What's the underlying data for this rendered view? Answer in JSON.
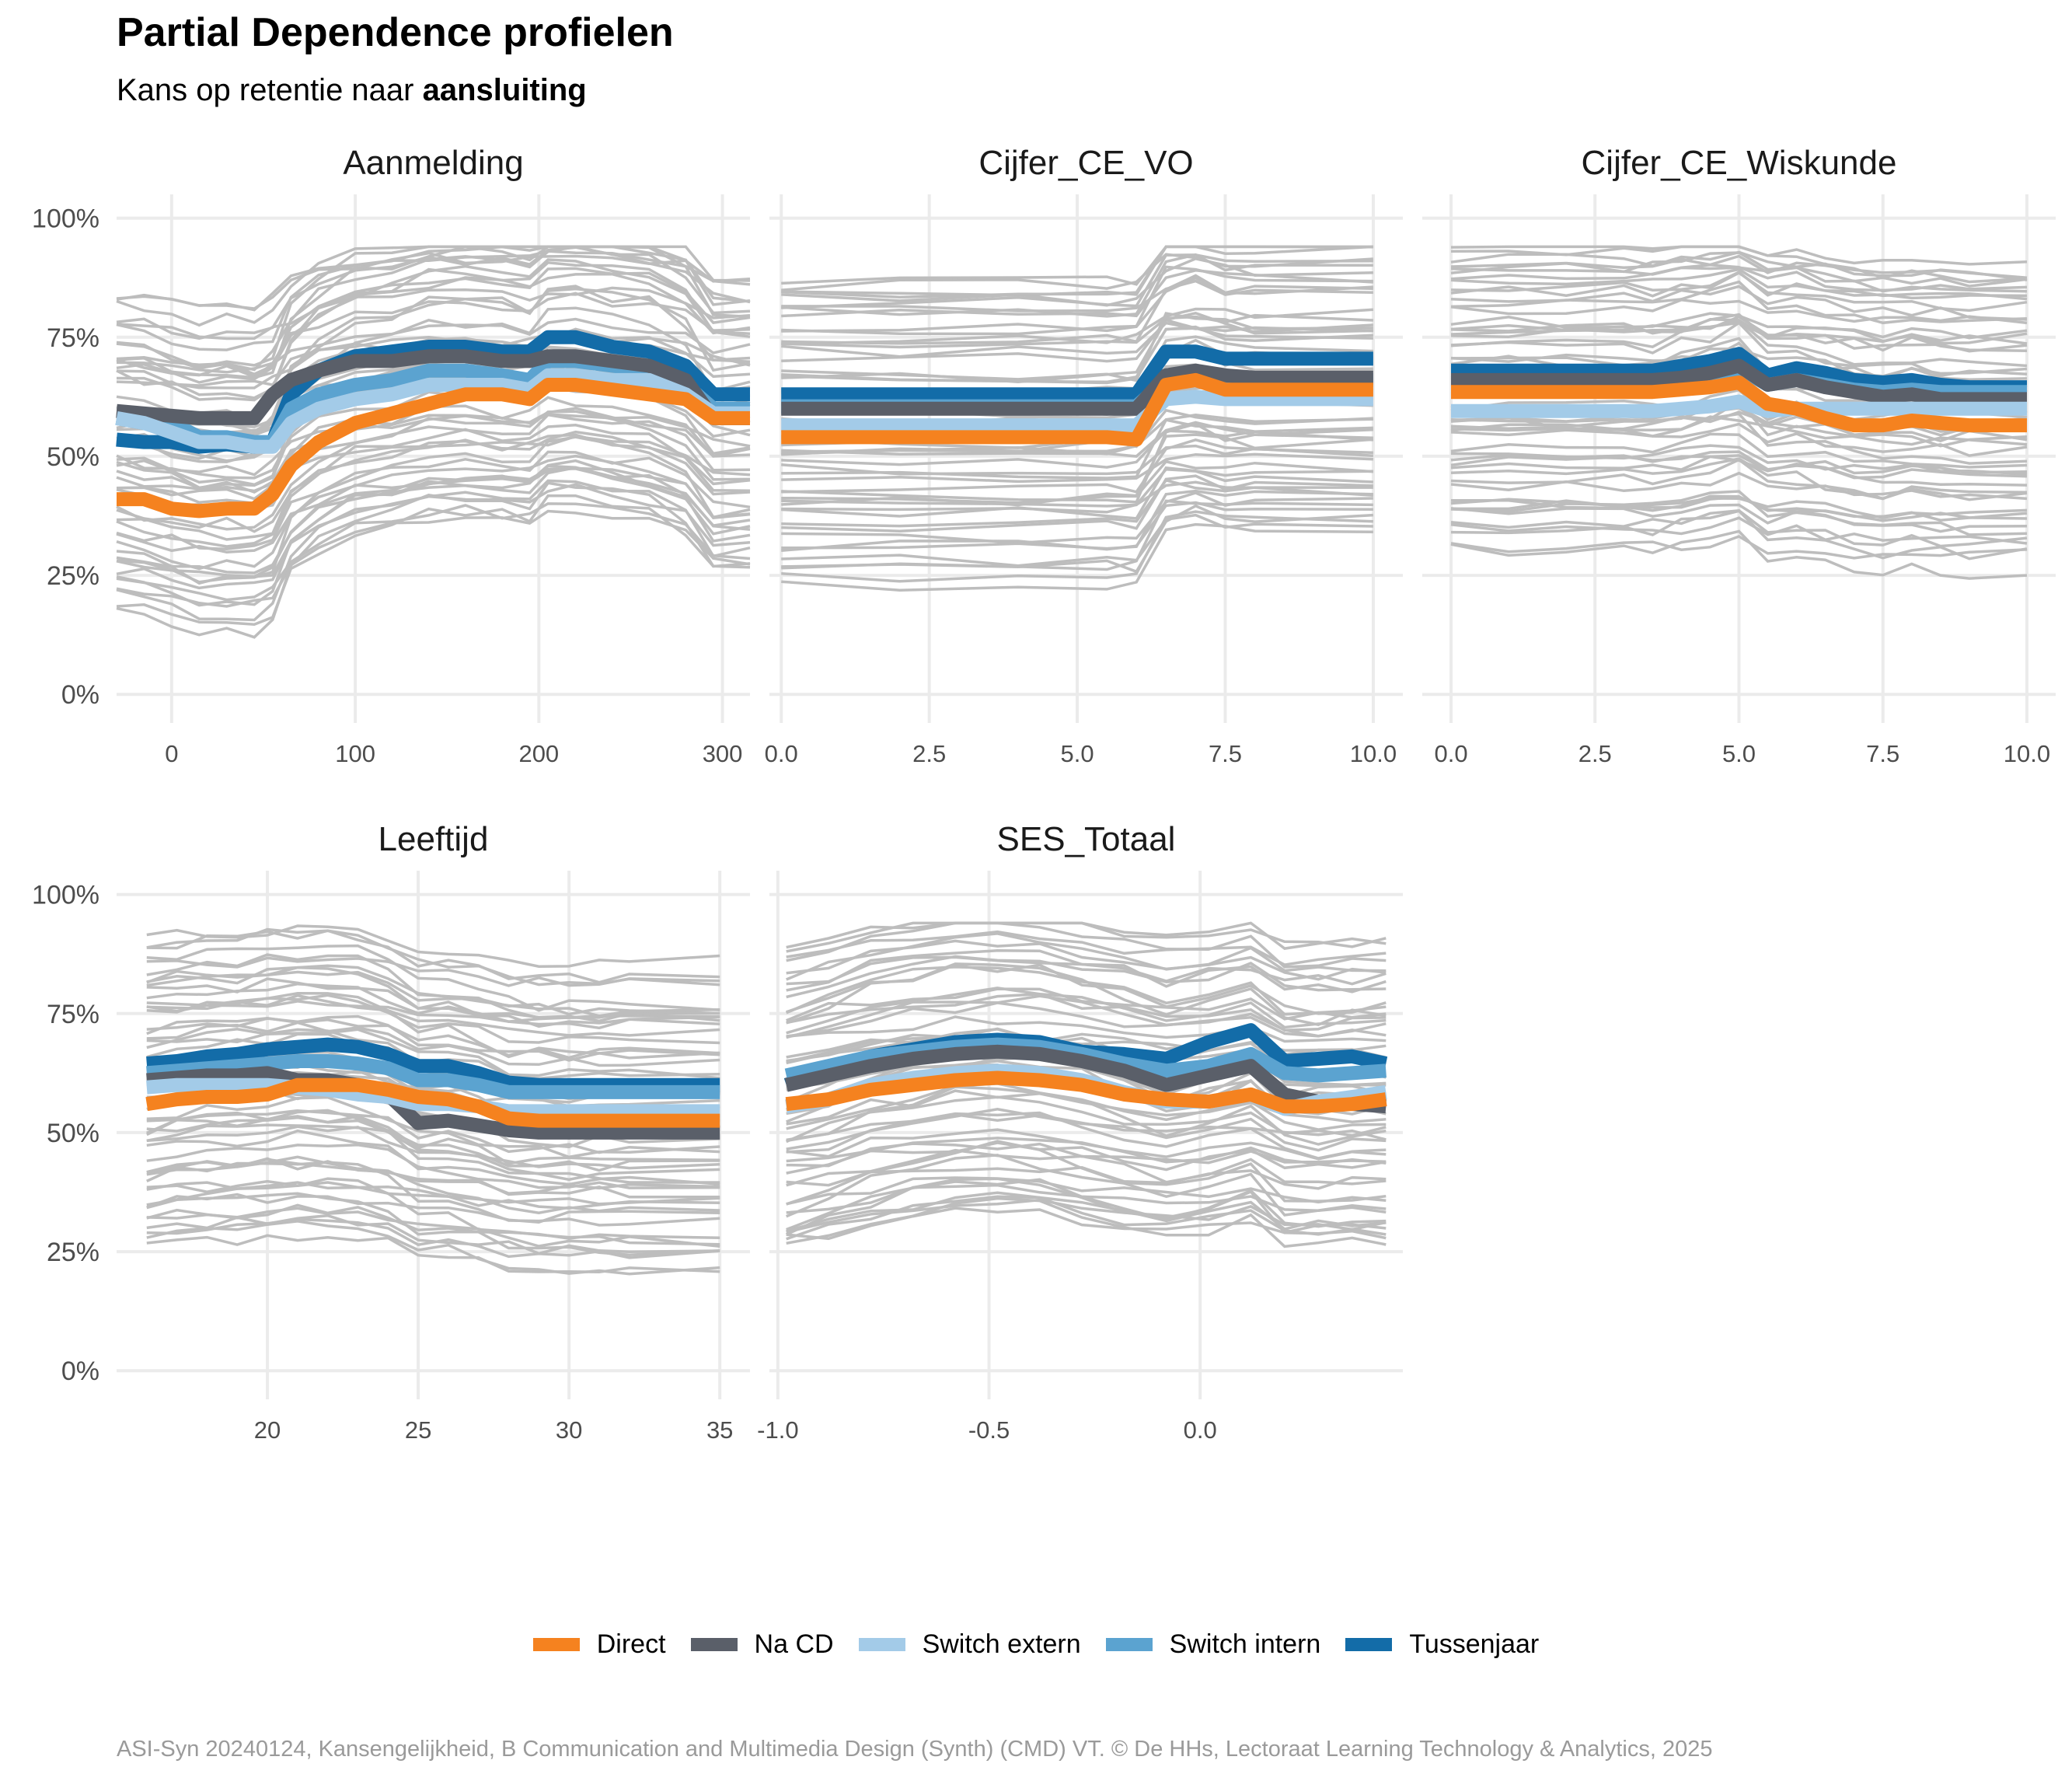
{
  "title": "Partial Dependence profielen",
  "subtitle_prefix": "Kans op retentie naar ",
  "subtitle_bold": "aansluiting",
  "caption": "ASI-Syn 20240124, Kansengelijkheid, B Communication and Multimedia Design (Synth) (CMD) VT. © De HHs, Lectoraat Learning Technology & Analytics, 2025",
  "colors": {
    "background_line": "#bdbdbd",
    "Direct": "#f5821f",
    "Na CD": "#5a5f69",
    "Switch extern": "#a3cbe8",
    "Switch intern": "#5ba3d0",
    "Tussenjaar": "#136ca8"
  },
  "legend": [
    "Direct",
    "Na CD",
    "Switch extern",
    "Switch intern",
    "Tussenjaar"
  ],
  "chart_data": [
    {
      "type": "line",
      "title": "Aanmelding",
      "xlim": [
        -30,
        315
      ],
      "ylim": [
        0,
        1
      ],
      "xticks": [
        0,
        100,
        200,
        300
      ],
      "xtick_labels": [
        "0",
        "100",
        "200",
        "300"
      ],
      "yticks": [
        0,
        0.25,
        0.5,
        0.75,
        1.0
      ],
      "ytick_labels": [
        "0%",
        "25%",
        "50%",
        "75%",
        "100%"
      ],
      "x": [
        -30,
        -15,
        0,
        15,
        30,
        45,
        55,
        65,
        80,
        100,
        120,
        140,
        160,
        180,
        195,
        205,
        220,
        240,
        260,
        280,
        295,
        315
      ],
      "series": [
        {
          "name": "Direct",
          "values": [
            0.41,
            0.41,
            0.39,
            0.385,
            0.39,
            0.39,
            0.42,
            0.48,
            0.53,
            0.57,
            0.59,
            0.61,
            0.63,
            0.63,
            0.62,
            0.65,
            0.65,
            0.64,
            0.63,
            0.62,
            0.58,
            0.58
          ]
        },
        {
          "name": "Na CD",
          "values": [
            0.595,
            0.59,
            0.585,
            0.58,
            0.58,
            0.58,
            0.63,
            0.66,
            0.68,
            0.7,
            0.7,
            0.71,
            0.71,
            0.7,
            0.7,
            0.71,
            0.71,
            0.7,
            0.69,
            0.66,
            0.58,
            0.58
          ]
        },
        {
          "name": "Switch extern",
          "values": [
            0.58,
            0.57,
            0.55,
            0.53,
            0.53,
            0.52,
            0.52,
            0.57,
            0.6,
            0.62,
            0.63,
            0.65,
            0.65,
            0.65,
            0.64,
            0.67,
            0.67,
            0.66,
            0.66,
            0.63,
            0.59,
            0.59
          ]
        },
        {
          "name": "Switch intern",
          "values": [
            0.58,
            0.57,
            0.57,
            0.54,
            0.54,
            0.53,
            0.53,
            0.6,
            0.63,
            0.65,
            0.66,
            0.68,
            0.68,
            0.67,
            0.66,
            0.7,
            0.7,
            0.69,
            0.68,
            0.65,
            0.6,
            0.6
          ]
        },
        {
          "name": "Tussenjaar",
          "values": [
            0.535,
            0.53,
            0.53,
            0.52,
            0.525,
            0.52,
            0.53,
            0.63,
            0.68,
            0.71,
            0.72,
            0.73,
            0.73,
            0.72,
            0.72,
            0.75,
            0.75,
            0.73,
            0.72,
            0.69,
            0.63,
            0.63
          ]
        }
      ]
    },
    {
      "type": "line",
      "title": "Cijfer_CE_VO",
      "xlim": [
        -0.2,
        10.5
      ],
      "ylim": [
        0,
        1
      ],
      "xticks": [
        0,
        2.5,
        5,
        7.5,
        10
      ],
      "xtick_labels": [
        "0.0",
        "2.5",
        "5.0",
        "7.5",
        "10.0"
      ],
      "yticks": [
        0,
        0.25,
        0.5,
        0.75,
        1.0
      ],
      "ytick_labels": [
        "0%",
        "25%",
        "50%",
        "75%",
        "100%"
      ],
      "x": [
        0,
        2,
        4,
        5.5,
        6,
        6.5,
        7,
        7.5,
        8,
        10
      ],
      "series": [
        {
          "name": "Direct",
          "values": [
            0.54,
            0.54,
            0.54,
            0.54,
            0.535,
            0.65,
            0.66,
            0.64,
            0.64,
            0.64
          ]
        },
        {
          "name": "Na CD",
          "values": [
            0.6,
            0.6,
            0.6,
            0.6,
            0.6,
            0.67,
            0.68,
            0.67,
            0.665,
            0.665
          ]
        },
        {
          "name": "Switch extern",
          "values": [
            0.565,
            0.565,
            0.565,
            0.565,
            0.565,
            0.62,
            0.625,
            0.62,
            0.62,
            0.62
          ]
        },
        {
          "name": "Switch intern",
          "values": [
            0.605,
            0.605,
            0.605,
            0.605,
            0.605,
            0.66,
            0.67,
            0.66,
            0.66,
            0.66
          ]
        },
        {
          "name": "Tussenjaar",
          "values": [
            0.63,
            0.63,
            0.63,
            0.63,
            0.63,
            0.72,
            0.72,
            0.705,
            0.705,
            0.705
          ]
        }
      ]
    },
    {
      "type": "line",
      "title": "Cijfer_CE_Wiskunde",
      "xlim": [
        -0.5,
        10.5
      ],
      "ylim": [
        0,
        1
      ],
      "xticks": [
        0,
        2.5,
        5,
        7.5,
        10
      ],
      "xtick_labels": [
        "0.0",
        "2.5",
        "5.0",
        "7.5",
        "10.0"
      ],
      "yticks": [
        0,
        0.25,
        0.5,
        0.75,
        1.0
      ],
      "ytick_labels": [
        "0%",
        "25%",
        "50%",
        "75%",
        "100%"
      ],
      "x": [
        0,
        1,
        2,
        3,
        3.5,
        4,
        4.5,
        5,
        5.5,
        6,
        6.5,
        7,
        7.5,
        8,
        8.5,
        9,
        10
      ],
      "series": [
        {
          "name": "Direct",
          "values": [
            0.635,
            0.635,
            0.635,
            0.635,
            0.635,
            0.64,
            0.645,
            0.655,
            0.61,
            0.6,
            0.58,
            0.565,
            0.565,
            0.575,
            0.57,
            0.565,
            0.565
          ]
        },
        {
          "name": "Na CD",
          "values": [
            0.66,
            0.66,
            0.66,
            0.66,
            0.66,
            0.665,
            0.675,
            0.69,
            0.65,
            0.66,
            0.645,
            0.635,
            0.625,
            0.63,
            0.62,
            0.62,
            0.62
          ]
        },
        {
          "name": "Switch extern",
          "values": [
            0.595,
            0.595,
            0.595,
            0.595,
            0.595,
            0.6,
            0.605,
            0.615,
            0.595,
            0.6,
            0.6,
            0.6,
            0.6,
            0.6,
            0.6,
            0.6,
            0.6
          ]
        },
        {
          "name": "Switch intern",
          "values": [
            0.655,
            0.655,
            0.655,
            0.655,
            0.655,
            0.66,
            0.67,
            0.685,
            0.65,
            0.66,
            0.65,
            0.64,
            0.635,
            0.64,
            0.635,
            0.635,
            0.635
          ]
        },
        {
          "name": "Tussenjaar",
          "values": [
            0.68,
            0.68,
            0.68,
            0.68,
            0.68,
            0.69,
            0.7,
            0.715,
            0.67,
            0.685,
            0.675,
            0.66,
            0.655,
            0.66,
            0.65,
            0.645,
            0.645
          ]
        }
      ]
    },
    {
      "type": "line",
      "title": "Leeftijd",
      "xlim": [
        15,
        36
      ],
      "ylim": [
        0,
        1
      ],
      "xticks": [
        20,
        25,
        30,
        35
      ],
      "xtick_labels": [
        "20",
        "25",
        "30",
        "35"
      ],
      "yticks": [
        0,
        0.25,
        0.5,
        0.75,
        1.0
      ],
      "ytick_labels": [
        "0%",
        "25%",
        "50%",
        "75%",
        "100%"
      ],
      "x": [
        16,
        17,
        18,
        19,
        20,
        21,
        22,
        23,
        24,
        25,
        26,
        27,
        28,
        29,
        30,
        31,
        32,
        35
      ],
      "series": [
        {
          "name": "Direct",
          "values": [
            0.56,
            0.57,
            0.575,
            0.575,
            0.58,
            0.6,
            0.6,
            0.6,
            0.59,
            0.575,
            0.57,
            0.555,
            0.53,
            0.525,
            0.525,
            0.525,
            0.525,
            0.525
          ]
        },
        {
          "name": "Na CD",
          "values": [
            0.61,
            0.615,
            0.62,
            0.62,
            0.625,
            0.61,
            0.61,
            0.6,
            0.58,
            0.52,
            0.525,
            0.515,
            0.505,
            0.5,
            0.5,
            0.5,
            0.5,
            0.5
          ]
        },
        {
          "name": "Switch extern",
          "values": [
            0.595,
            0.6,
            0.6,
            0.6,
            0.6,
            0.595,
            0.59,
            0.58,
            0.575,
            0.56,
            0.56,
            0.555,
            0.545,
            0.545,
            0.545,
            0.545,
            0.545,
            0.545
          ]
        },
        {
          "name": "Switch intern",
          "values": [
            0.625,
            0.63,
            0.635,
            0.64,
            0.645,
            0.65,
            0.65,
            0.645,
            0.635,
            0.61,
            0.61,
            0.6,
            0.585,
            0.585,
            0.585,
            0.585,
            0.585,
            0.585
          ]
        },
        {
          "name": "Tussenjaar",
          "values": [
            0.645,
            0.65,
            0.66,
            0.665,
            0.675,
            0.68,
            0.685,
            0.68,
            0.665,
            0.64,
            0.64,
            0.625,
            0.605,
            0.6,
            0.6,
            0.6,
            0.6,
            0.6
          ]
        }
      ]
    },
    {
      "type": "line",
      "title": "SES_Totaal",
      "xlim": [
        -1.02,
        0.48
      ],
      "ylim": [
        0,
        1
      ],
      "xticks": [
        -1.0,
        -0.5,
        0.0
      ],
      "xtick_labels": [
        "-1.0",
        "-0.5",
        "0.0"
      ],
      "yticks": [
        0,
        0.25,
        0.5,
        0.75,
        1.0
      ],
      "ytick_labels": [
        "0%",
        "25%",
        "50%",
        "75%",
        "100%"
      ],
      "x": [
        -0.98,
        -0.88,
        -0.78,
        -0.68,
        -0.58,
        -0.48,
        -0.38,
        -0.28,
        -0.18,
        -0.08,
        0.02,
        0.12,
        0.2,
        0.28,
        0.36,
        0.44
      ],
      "series": [
        {
          "name": "Direct",
          "values": [
            0.56,
            0.57,
            0.59,
            0.6,
            0.61,
            0.615,
            0.61,
            0.6,
            0.58,
            0.57,
            0.565,
            0.58,
            0.555,
            0.555,
            0.56,
            0.57
          ]
        },
        {
          "name": "Na CD",
          "values": [
            0.6,
            0.62,
            0.64,
            0.655,
            0.665,
            0.67,
            0.665,
            0.65,
            0.63,
            0.6,
            0.62,
            0.64,
            0.58,
            0.565,
            0.56,
            0.555
          ]
        },
        {
          "name": "Switch extern",
          "values": [
            0.555,
            0.57,
            0.6,
            0.615,
            0.625,
            0.63,
            0.625,
            0.61,
            0.585,
            0.565,
            0.565,
            0.58,
            0.55,
            0.565,
            0.575,
            0.585
          ]
        },
        {
          "name": "Switch intern",
          "values": [
            0.62,
            0.64,
            0.66,
            0.67,
            0.68,
            0.685,
            0.68,
            0.665,
            0.645,
            0.63,
            0.64,
            0.665,
            0.625,
            0.62,
            0.625,
            0.63
          ]
        },
        {
          "name": "Tussenjaar",
          "values": [
            0.6,
            0.63,
            0.66,
            0.675,
            0.69,
            0.695,
            0.69,
            0.67,
            0.665,
            0.655,
            0.69,
            0.715,
            0.65,
            0.655,
            0.66,
            0.645
          ]
        }
      ]
    }
  ]
}
